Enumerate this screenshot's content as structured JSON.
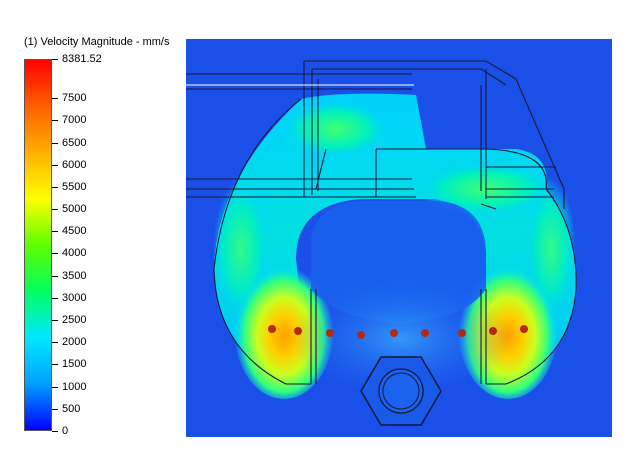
{
  "legend": {
    "title": "(1) Velocity Magnitude - mm/s",
    "max_label": "8381.52",
    "ticks": [
      "8381.52",
      "7500",
      "7000",
      "6500",
      "6000",
      "5500",
      "5000",
      "4500",
      "4000",
      "3500",
      "3000",
      "2500",
      "2000",
      "1500",
      "1000",
      "500",
      "0"
    ],
    "tick_values": [
      8381.52,
      7500,
      7000,
      6500,
      6000,
      5500,
      5000,
      4500,
      4000,
      3500,
      3000,
      2500,
      2000,
      1500,
      1000,
      500,
      0
    ],
    "min": 0,
    "max": 8381.52,
    "colormap": [
      "#0000ff",
      "#00a0ff",
      "#00e8ff",
      "#00ff60",
      "#60ff00",
      "#ffff00",
      "#ffb000",
      "#ff6000",
      "#ff0000"
    ]
  },
  "plot": {
    "background_color": "#1a4fe8",
    "outline_color": "#1a1a3a",
    "probe_points_color": "#b02a14",
    "probe_points_count": 9
  }
}
